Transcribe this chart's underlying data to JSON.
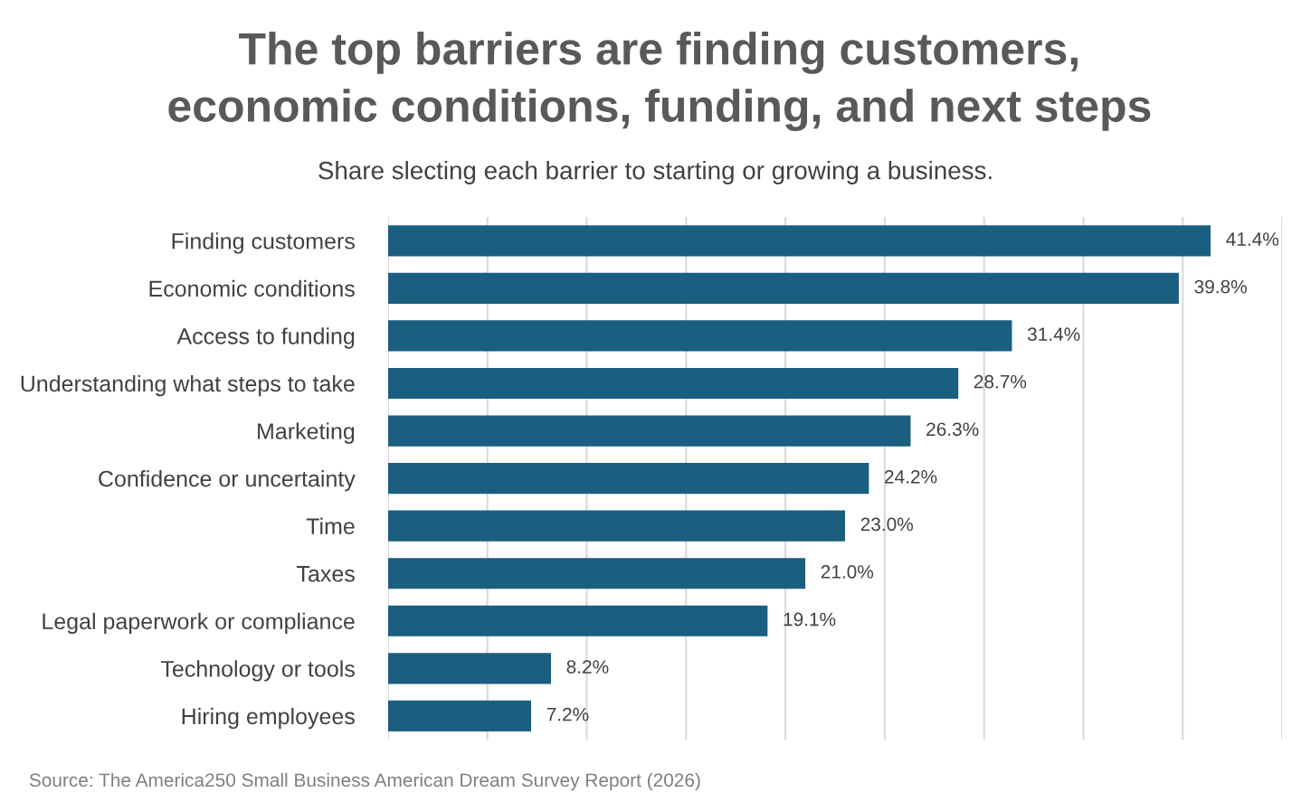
{
  "chart_data": {
    "type": "bar",
    "orientation": "horizontal",
    "title": "The top barriers are finding customers,\neconomic conditions, funding, and next steps",
    "subtitle": "Share slecting each barrier to starting or growing a business.",
    "categories": [
      "Finding customers",
      "Economic conditions",
      "Access to funding",
      "Understanding what steps to take",
      "Marketing",
      "Confidence or uncertainty",
      "Time",
      "Taxes",
      "Legal paperwork or compliance",
      "Technology or tools",
      "Hiring employees"
    ],
    "values": [
      41.4,
      39.8,
      31.4,
      28.7,
      26.3,
      24.2,
      23.0,
      21.0,
      19.1,
      8.2,
      7.2
    ],
    "value_labels": [
      "41.4%",
      "39.8%",
      "31.4%",
      "28.7%",
      "26.3%",
      "24.2%",
      "23.0%",
      "21.0%",
      "19.1%",
      "8.2%",
      "7.2%"
    ],
    "color": "#1a5e80",
    "xlim": [
      0,
      45
    ],
    "xticks": [
      {
        "value": 0,
        "label": null
      },
      {
        "value": 5,
        "label": null
      },
      {
        "value": 10,
        "label": null
      },
      {
        "value": 15,
        "label": null
      },
      {
        "value": 20,
        "label": null
      },
      {
        "value": 25,
        "label": null
      },
      {
        "value": 30,
        "label": null
      },
      {
        "value": 35,
        "label": null
      },
      {
        "value": 40,
        "label": null
      },
      {
        "value": 45,
        "label": null
      }
    ],
    "tick_labels": "y",
    "grid": "x",
    "legend": false,
    "annotations": [
      "Source: The America250 Small Business American Dream Survey Report (2026)"
    ]
  }
}
